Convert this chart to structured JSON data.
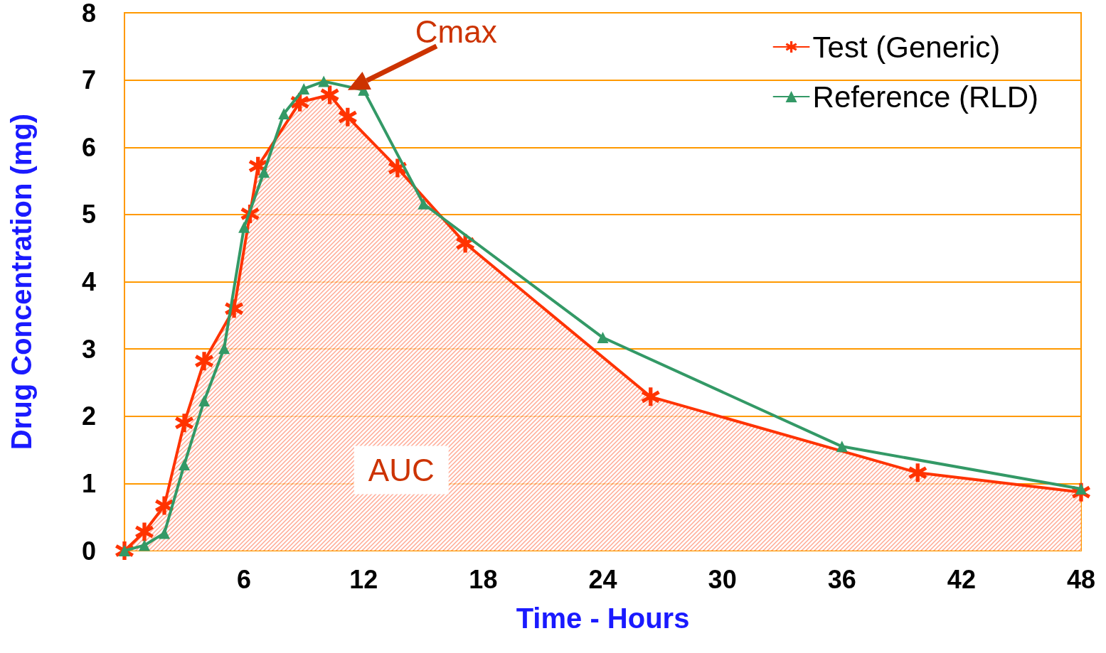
{
  "chart_data": {
    "type": "line",
    "xlabel": "Time - Hours",
    "ylabel": "Drug Concentration (mg)",
    "annotations": [
      {
        "text": "Cmax",
        "x": 11.2,
        "y": 6.85
      },
      "AUC"
    ],
    "series": [
      {
        "name": "Test (Generic)",
        "type": "area",
        "color": "#ff3300",
        "marker": "star",
        "x": [
          0,
          1,
          2,
          3,
          4,
          5.5,
          6.3,
          6.7,
          8.8,
          10.3,
          11.2,
          13.7,
          17.1,
          26.4,
          39.8,
          48
        ],
        "values": [
          0,
          0.28,
          0.67,
          1.9,
          2.82,
          3.6,
          5.01,
          5.72,
          6.67,
          6.78,
          6.45,
          5.69,
          4.57,
          2.29,
          1.16,
          0.87
        ]
      },
      {
        "name": "Reference (RLD)",
        "color": "#339966",
        "marker": "triangle",
        "x": [
          0,
          1,
          2,
          3,
          4,
          5,
          6,
          7,
          8,
          9,
          10,
          12,
          15,
          24,
          36,
          48
        ],
        "values": [
          0,
          0.08,
          0.26,
          1.28,
          2.23,
          3.01,
          4.81,
          5.63,
          6.5,
          6.87,
          6.98,
          6.85,
          5.16,
          3.17,
          1.55,
          0.92
        ]
      }
    ],
    "xlim": [
      0,
      48
    ],
    "xticks": [
      6,
      12,
      18,
      24,
      30,
      36,
      42,
      48
    ],
    "ylim": [
      0,
      8
    ],
    "yticks": [
      0,
      1,
      2,
      3,
      4,
      5,
      6,
      7,
      8
    ],
    "grid": "y",
    "legend": "top right",
    "line_style": "solid"
  }
}
